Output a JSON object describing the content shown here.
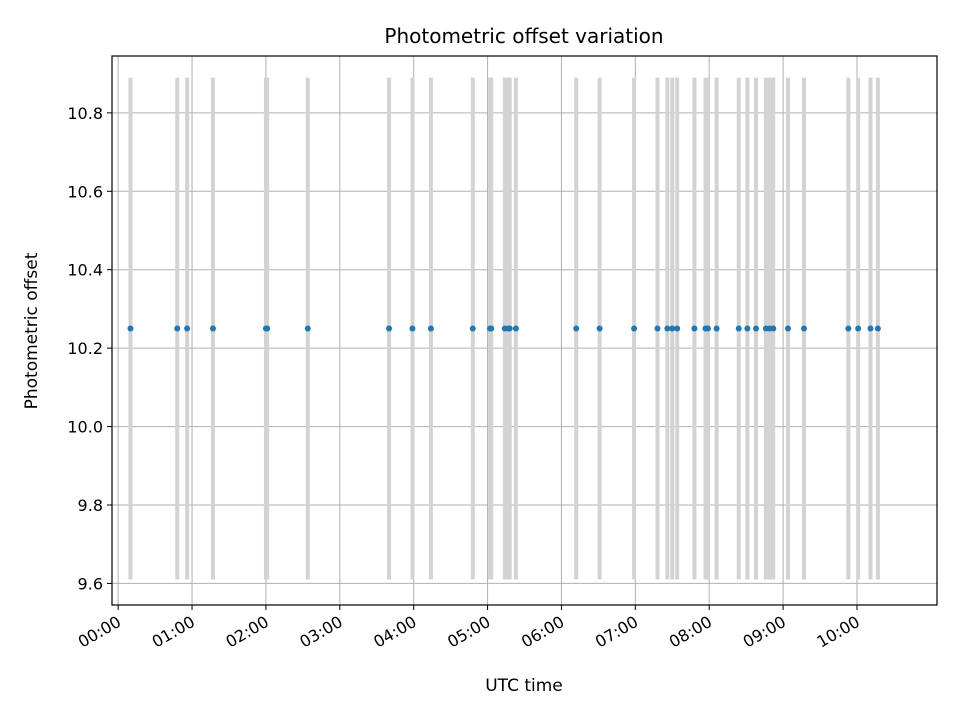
{
  "chart_data": {
    "type": "scatter",
    "title": "Photometric offset variation",
    "xlabel": "UTC time",
    "ylabel": "Photometric offset",
    "xlim": [
      "-00:05",
      "11:05"
    ],
    "ylim": [
      9.545,
      10.945
    ],
    "x_ticks": [
      "00:00",
      "01:00",
      "02:00",
      "03:00",
      "04:00",
      "05:00",
      "06:00",
      "07:00",
      "08:00",
      "09:00",
      "10:00"
    ],
    "y_ticks": [
      "9.6",
      "9.8",
      "10.0",
      "10.2",
      "10.4",
      "10.6",
      "10.8"
    ],
    "grid": true,
    "error_bar_range": [
      9.61,
      10.89
    ],
    "colors": {
      "points": "#1f77b4",
      "error_bars": "#d3d3d3",
      "grid": "#b0b0b0"
    },
    "series": [
      {
        "x": [
          "00:10",
          "00:48",
          "00:56",
          "01:17",
          "02:00",
          "02:01",
          "02:34",
          "03:40",
          "03:59",
          "04:14",
          "04:48",
          "05:02",
          "05:03",
          "05:14",
          "05:17",
          "05:18",
          "05:23",
          "06:12",
          "06:31",
          "06:59",
          "07:18",
          "07:26",
          "07:30",
          "07:34",
          "07:48",
          "07:57",
          "07:59",
          "08:06",
          "08:24",
          "08:31",
          "08:38",
          "08:46",
          "08:49",
          "08:52",
          "09:04",
          "09:17",
          "09:53",
          "10:01",
          "10:11",
          "10:17"
        ],
        "y": [
          10.25,
          10.25,
          10.25,
          10.25,
          10.25,
          10.25,
          10.25,
          10.25,
          10.25,
          10.25,
          10.25,
          10.25,
          10.25,
          10.25,
          10.25,
          10.25,
          10.25,
          10.25,
          10.25,
          10.25,
          10.25,
          10.25,
          10.25,
          10.25,
          10.25,
          10.25,
          10.25,
          10.25,
          10.25,
          10.25,
          10.25,
          10.25,
          10.25,
          10.25,
          10.25,
          10.25,
          10.25,
          10.25,
          10.25,
          10.25
        ]
      }
    ]
  }
}
